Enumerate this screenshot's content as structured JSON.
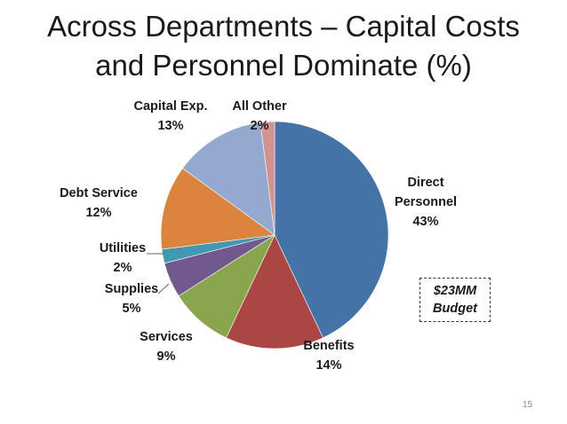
{
  "title": {
    "line1": "Across Departments – Capital Costs",
    "line2": "and Personnel Dominate (%)"
  },
  "chart_data": {
    "type": "pie",
    "start_angle_deg": 0,
    "direction": "clockwise",
    "slices": [
      {
        "name": "Direct Personnel",
        "label_lines": [
          "Direct",
          "Personnel"
        ],
        "value": 43,
        "value_label": "43%",
        "color": "#4572A7"
      },
      {
        "name": "Benefits",
        "label_lines": [
          "Benefits"
        ],
        "value": 14,
        "value_label": "14%",
        "color": "#AA4643"
      },
      {
        "name": "Services",
        "label_lines": [
          "Services"
        ],
        "value": 9,
        "value_label": "9%",
        "color": "#89A54E"
      },
      {
        "name": "Supplies",
        "label_lines": [
          "Supplies"
        ],
        "value": 5,
        "value_label": "5%",
        "color": "#71588F"
      },
      {
        "name": "Utilities",
        "label_lines": [
          "Utilities"
        ],
        "value": 2,
        "value_label": "2%",
        "color": "#4198AF"
      },
      {
        "name": "Debt Service",
        "label_lines": [
          "Debt Service"
        ],
        "value": 12,
        "value_label": "12%",
        "color": "#DB843D"
      },
      {
        "name": "Capital Exp.",
        "label_lines": [
          "Capital Exp."
        ],
        "value": 13,
        "value_label": "13%",
        "color": "#93A9CF"
      },
      {
        "name": "All Other",
        "label_lines": [
          "All Other"
        ],
        "value": 2,
        "value_label": "2%",
        "color": "#D19392"
      }
    ]
  },
  "budget": {
    "line1": "$23MM",
    "line2": "Budget"
  },
  "page_number": "15"
}
